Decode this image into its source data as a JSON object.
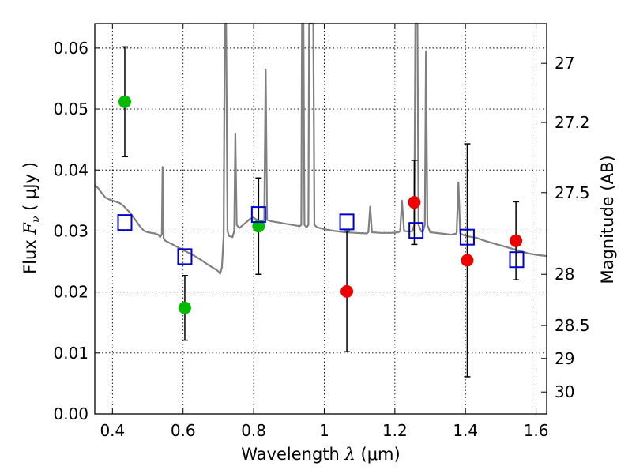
{
  "chart_data": {
    "type": "scatter",
    "xlabel": {
      "prefix": "Wavelength  ",
      "symbol": "λ",
      "units": " (μm)"
    },
    "ylabel": {
      "prefix": "Flux  ",
      "symbol": "F",
      "subscript": "ν",
      "units": "  ( μJy )"
    },
    "y2label": "Magnitude (AB)",
    "xlim": [
      0.35,
      1.63
    ],
    "ylim": [
      0.0,
      0.064
    ],
    "grid": true,
    "x_ticks": [
      0.4,
      0.6,
      0.8,
      1.0,
      1.2,
      1.4,
      1.6
    ],
    "x_tick_labels": [
      "0.4",
      "0.6",
      "0.8",
      "1",
      "1.2",
      "1.4",
      "1.6"
    ],
    "y_ticks": [
      0.0,
      0.01,
      0.02,
      0.03,
      0.04,
      0.05,
      0.06
    ],
    "y_tick_labels": [
      "0.00",
      "0.01",
      "0.02",
      "0.03",
      "0.04",
      "0.05",
      "0.06"
    ],
    "mag_ticks": [
      {
        "label": "27",
        "flux": 0.0575
      },
      {
        "label": "27.2",
        "flux": 0.0478
      },
      {
        "label": "27.5",
        "flux": 0.0363
      },
      {
        "label": "28",
        "flux": 0.0229
      },
      {
        "label": "28.5",
        "flux": 0.0145
      },
      {
        "label": "29",
        "flux": 0.0091
      },
      {
        "label": "30",
        "flux": 0.0036
      }
    ],
    "colors": {
      "model": "#808080",
      "green": "#00bb00",
      "red": "#ee0000",
      "square": "#0000cc",
      "errorbar": "#000000"
    },
    "series": [
      {
        "kind": "points",
        "color_key": "green",
        "x": [
          0.435,
          0.605,
          0.814
        ],
        "y": [
          0.0512,
          0.0174,
          0.0308
        ],
        "err": [
          0.009,
          0.0053,
          0.0079
        ]
      },
      {
        "kind": "points",
        "color_key": "red",
        "x": [
          1.064,
          1.255,
          1.405,
          1.543
        ],
        "y": [
          0.0201,
          0.0347,
          0.0252,
          0.0284
        ],
        "err": [
          0.0099,
          0.0069,
          0.0191,
          0.0064
        ]
      },
      {
        "kind": "squares",
        "color_key": "square",
        "x": [
          0.435,
          0.605,
          0.814,
          1.064,
          1.26,
          1.405,
          1.545
        ],
        "y": [
          0.0314,
          0.0258,
          0.0327,
          0.0315,
          0.0301,
          0.029,
          0.0253
        ]
      }
    ],
    "model_spectrum": [
      [
        0.35,
        0.0375
      ],
      [
        0.36,
        0.037
      ],
      [
        0.37,
        0.0362
      ],
      [
        0.38,
        0.0355
      ],
      [
        0.39,
        0.0352
      ],
      [
        0.4,
        0.035
      ],
      [
        0.41,
        0.0348
      ],
      [
        0.42,
        0.0346
      ],
      [
        0.43,
        0.0342
      ],
      [
        0.44,
        0.0336
      ],
      [
        0.45,
        0.033
      ],
      [
        0.46,
        0.0322
      ],
      [
        0.47,
        0.0314
      ],
      [
        0.48,
        0.0306
      ],
      [
        0.49,
        0.03
      ],
      [
        0.5,
        0.0298
      ],
      [
        0.51,
        0.0297
      ],
      [
        0.52,
        0.0296
      ],
      [
        0.53,
        0.0294
      ],
      [
        0.535,
        0.029
      ],
      [
        0.54,
        0.0295
      ],
      [
        0.542,
        0.0405
      ],
      [
        0.545,
        0.0288
      ],
      [
        0.55,
        0.0284
      ],
      [
        0.57,
        0.0278
      ],
      [
        0.59,
        0.0272
      ],
      [
        0.61,
        0.0266
      ],
      [
        0.63,
        0.026
      ],
      [
        0.65,
        0.0253
      ],
      [
        0.67,
        0.0245
      ],
      [
        0.69,
        0.0238
      ],
      [
        0.7,
        0.0234
      ],
      [
        0.705,
        0.023
      ],
      [
        0.71,
        0.024
      ],
      [
        0.715,
        0.0292
      ],
      [
        0.718,
        0.064
      ],
      [
        0.722,
        0.064
      ],
      [
        0.726,
        0.03
      ],
      [
        0.73,
        0.0292
      ],
      [
        0.74,
        0.029
      ],
      [
        0.745,
        0.03
      ],
      [
        0.748,
        0.046
      ],
      [
        0.752,
        0.031
      ],
      [
        0.76,
        0.0305
      ],
      [
        0.77,
        0.031
      ],
      [
        0.78,
        0.0315
      ],
      [
        0.79,
        0.032
      ],
      [
        0.8,
        0.0322
      ],
      [
        0.81,
        0.0318
      ],
      [
        0.82,
        0.0316
      ],
      [
        0.83,
        0.0318
      ],
      [
        0.834,
        0.0565
      ],
      [
        0.838,
        0.0318
      ],
      [
        0.85,
        0.0316
      ],
      [
        0.87,
        0.0314
      ],
      [
        0.89,
        0.0312
      ],
      [
        0.91,
        0.031
      ],
      [
        0.93,
        0.0308
      ],
      [
        0.935,
        0.031
      ],
      [
        0.937,
        0.064
      ],
      [
        0.941,
        0.064
      ],
      [
        0.944,
        0.031
      ],
      [
        0.95,
        0.0306
      ],
      [
        0.955,
        0.031
      ],
      [
        0.957,
        0.064
      ],
      [
        0.962,
        0.064
      ],
      [
        0.965,
        0.064
      ],
      [
        0.969,
        0.064
      ],
      [
        0.972,
        0.031
      ],
      [
        0.98,
        0.0306
      ],
      [
        1.0,
        0.0303
      ],
      [
        1.03,
        0.03
      ],
      [
        1.06,
        0.0298
      ],
      [
        1.09,
        0.0297
      ],
      [
        1.12,
        0.0296
      ],
      [
        1.125,
        0.0298
      ],
      [
        1.13,
        0.034
      ],
      [
        1.135,
        0.0298
      ],
      [
        1.16,
        0.0297
      ],
      [
        1.19,
        0.0297
      ],
      [
        1.21,
        0.0298
      ],
      [
        1.215,
        0.03
      ],
      [
        1.22,
        0.035
      ],
      [
        1.226,
        0.03
      ],
      [
        1.24,
        0.0299
      ],
      [
        1.25,
        0.03
      ],
      [
        1.255,
        0.031
      ],
      [
        1.258,
        0.064
      ],
      [
        1.264,
        0.064
      ],
      [
        1.267,
        0.031
      ],
      [
        1.275,
        0.0299
      ],
      [
        1.28,
        0.03
      ],
      [
        1.285,
        0.031
      ],
      [
        1.288,
        0.0595
      ],
      [
        1.292,
        0.031
      ],
      [
        1.3,
        0.0298
      ],
      [
        1.33,
        0.0296
      ],
      [
        1.36,
        0.0294
      ],
      [
        1.375,
        0.0296
      ],
      [
        1.38,
        0.038
      ],
      [
        1.385,
        0.0296
      ],
      [
        1.4,
        0.0292
      ],
      [
        1.43,
        0.0289
      ],
      [
        1.46,
        0.0283
      ],
      [
        1.49,
        0.0278
      ],
      [
        1.52,
        0.0273
      ],
      [
        1.55,
        0.0268
      ],
      [
        1.58,
        0.0263
      ],
      [
        1.6,
        0.0261
      ],
      [
        1.63,
        0.0259
      ]
    ]
  }
}
